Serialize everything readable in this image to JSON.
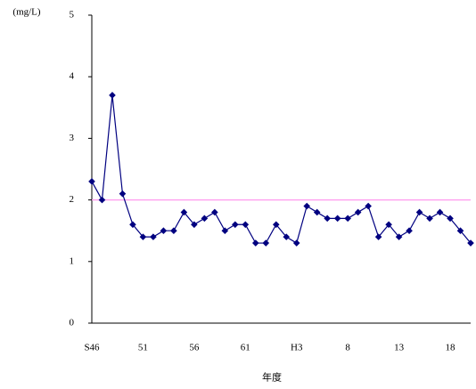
{
  "chart_data": {
    "type": "line",
    "y_label": "(mg/L)",
    "x_label": "年度",
    "categories": [
      "S46",
      null,
      null,
      null,
      null,
      "51",
      null,
      null,
      null,
      null,
      "56",
      null,
      null,
      null,
      null,
      "61",
      null,
      null,
      null,
      null,
      "H3",
      null,
      null,
      null,
      null,
      "8",
      null,
      null,
      null,
      null,
      "13",
      null,
      null,
      null,
      null,
      "18",
      null,
      null
    ],
    "series": [
      {
        "color": "#000080",
        "values": [
          2.3,
          2.0,
          3.7,
          2.1,
          1.6,
          1.4,
          1.4,
          1.5,
          1.5,
          1.8,
          1.6,
          1.7,
          1.8,
          1.5,
          1.6,
          1.6,
          1.3,
          1.3,
          1.6,
          1.4,
          1.3,
          1.9,
          1.8,
          1.7,
          1.7,
          1.7,
          1.8,
          1.9,
          1.4,
          1.6,
          1.4,
          1.5,
          1.8,
          1.7,
          1.8,
          1.7,
          1.5,
          1.3
        ]
      }
    ],
    "reference_line": {
      "value": 2,
      "color": "#ff99ee"
    },
    "ylim": [
      0,
      5
    ],
    "yticks": [
      0,
      1,
      2,
      3,
      4,
      5
    ],
    "grid": false
  }
}
